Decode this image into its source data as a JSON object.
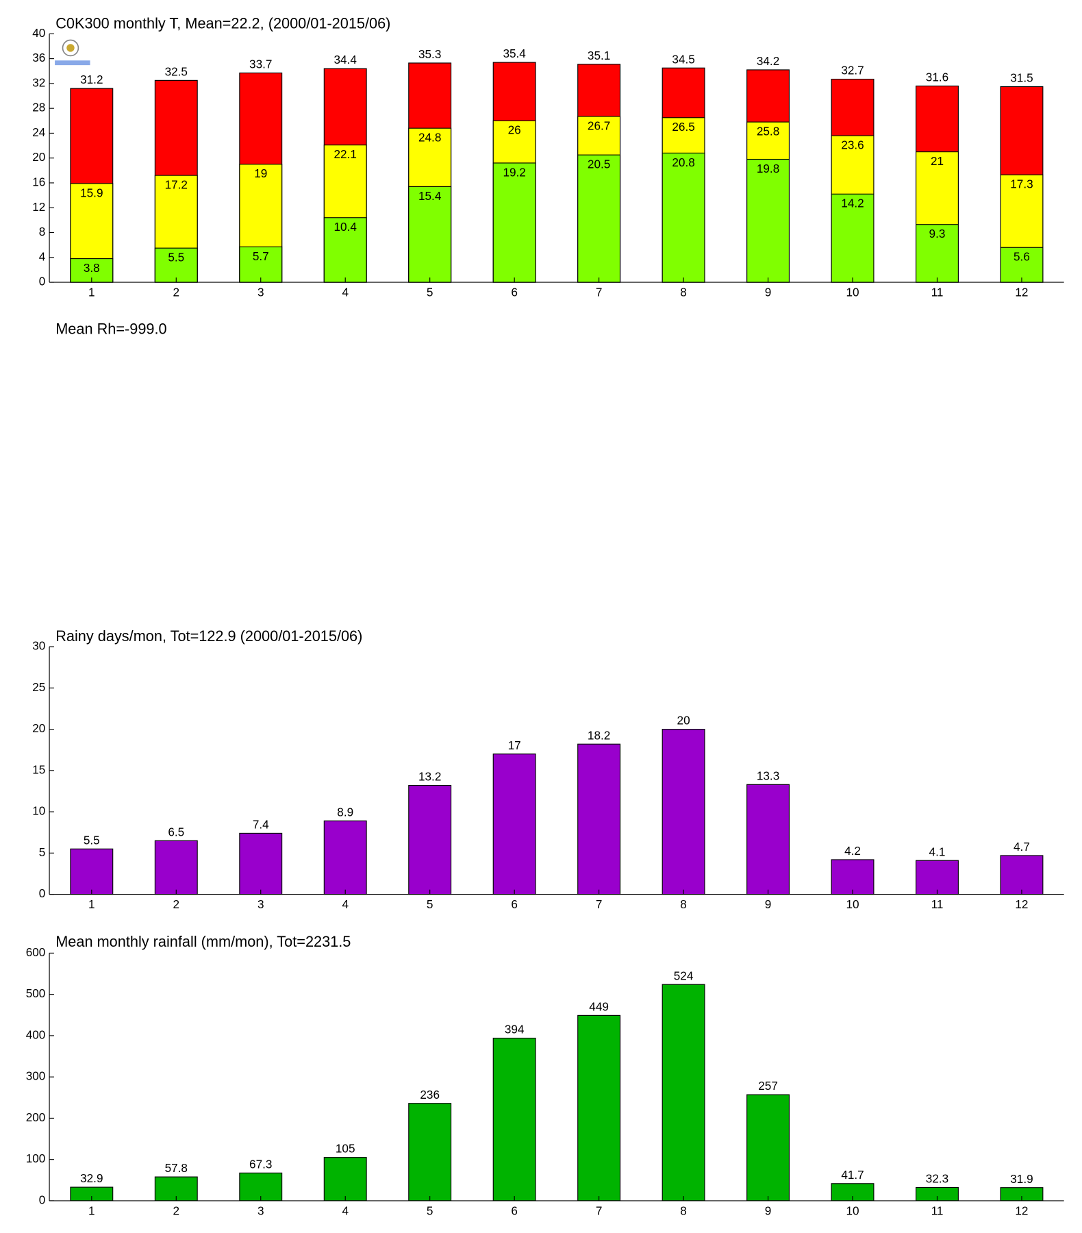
{
  "chart_data": [
    {
      "type": "bar",
      "title": "C0K300 monthly T, Mean=22.2, (2000/01-2015/06)",
      "categories": [
        1,
        2,
        3,
        4,
        5,
        6,
        7,
        8,
        9,
        10,
        11,
        12
      ],
      "series": [
        {
          "color": "#ff0000",
          "values": [
            31.2,
            32.5,
            33.7,
            34.4,
            35.3,
            35.4,
            35.1,
            34.5,
            34.2,
            32.7,
            31.6,
            31.5
          ]
        },
        {
          "color": "#ffff00",
          "values": [
            15.9,
            17.2,
            19,
            22.1,
            24.8,
            26,
            26.7,
            26.5,
            25.8,
            23.6,
            21,
            17.3
          ]
        },
        {
          "color": "#80ff00",
          "values": [
            3.8,
            5.5,
            5.7,
            10.4,
            15.4,
            19.2,
            20.5,
            20.8,
            19.8,
            14.2,
            9.3,
            5.6
          ]
        }
      ],
      "ylim": [
        0,
        40
      ],
      "yticks": [
        0,
        4,
        8,
        12,
        16,
        20,
        24,
        28,
        32,
        36,
        40
      ]
    },
    {
      "type": "none",
      "title": "Mean Rh=-999.0"
    },
    {
      "type": "bar",
      "title": "Rainy days/mon, Tot=122.9 (2000/01-2015/06)",
      "categories": [
        1,
        2,
        3,
        4,
        5,
        6,
        7,
        8,
        9,
        10,
        11,
        12
      ],
      "values": [
        5.5,
        6.5,
        7.4,
        8.9,
        13.2,
        17,
        18.2,
        20,
        13.3,
        4.2,
        4.1,
        4.7
      ],
      "color": "#9900cc",
      "ylim": [
        0,
        30
      ],
      "yticks": [
        0,
        5,
        10,
        15,
        20,
        25,
        30
      ]
    },
    {
      "type": "bar",
      "title": "Mean monthly rainfall (mm/mon), Tot=2231.5",
      "categories": [
        1,
        2,
        3,
        4,
        5,
        6,
        7,
        8,
        9,
        10,
        11,
        12
      ],
      "values": [
        32.9,
        57.8,
        67.3,
        105,
        236,
        394,
        449,
        524,
        257,
        41.7,
        32.3,
        31.9
      ],
      "color": "#00b300",
      "ylim": [
        0,
        600
      ],
      "yticks": [
        0,
        100,
        200,
        300,
        400,
        500,
        600
      ]
    }
  ]
}
